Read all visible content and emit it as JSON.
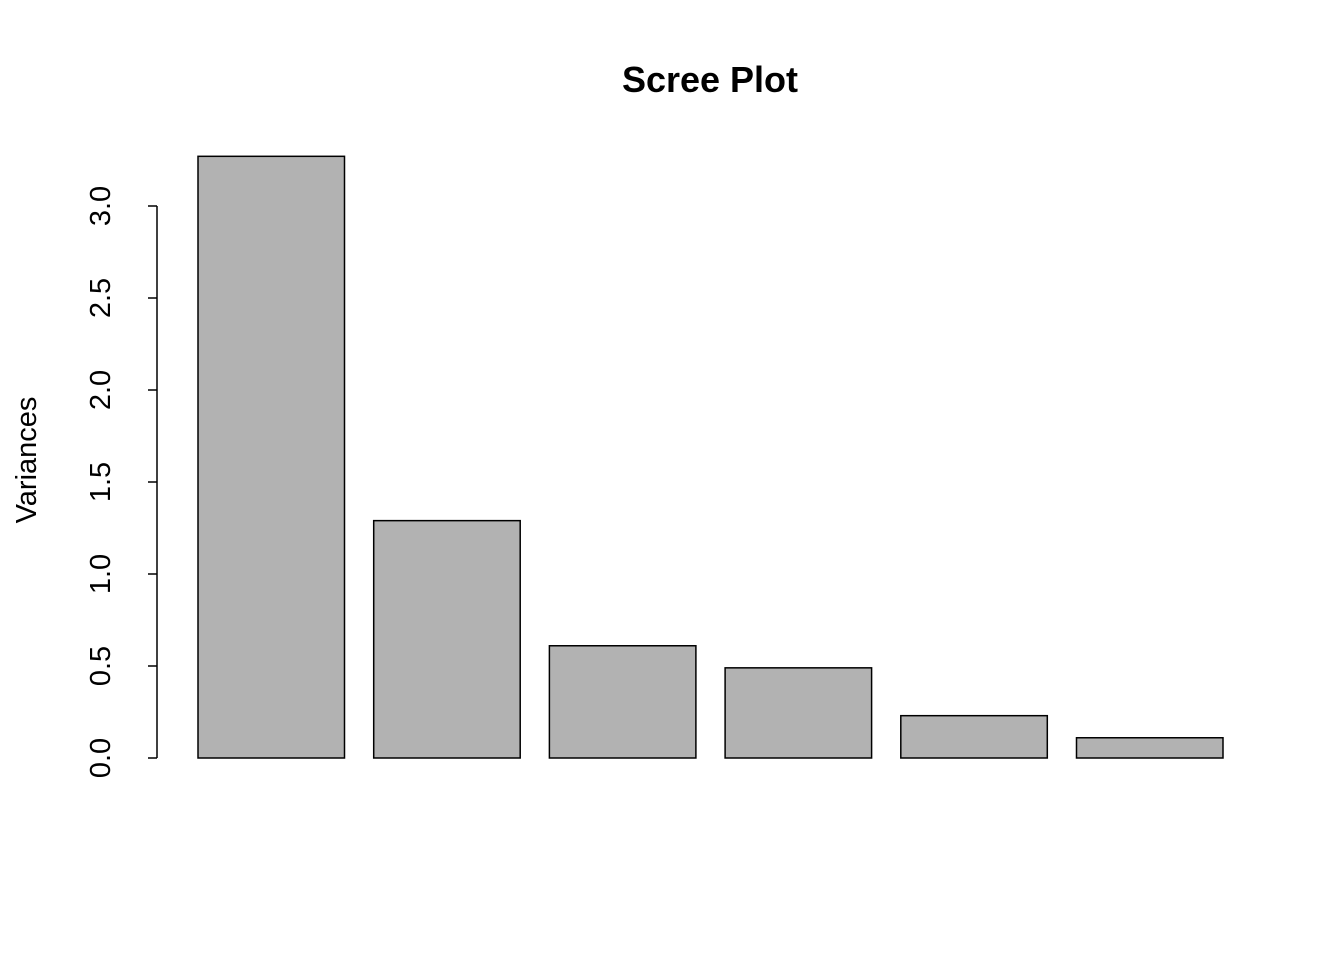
{
  "chart_data": {
    "type": "bar",
    "title": "Scree Plot",
    "y_label": "Variances",
    "categories": [
      null,
      null,
      null,
      null,
      null,
      null
    ],
    "values": [
      3.27,
      1.29,
      0.61,
      0.49,
      0.23,
      0.11
    ],
    "color": "#b2b2b2",
    "ylim": [
      0,
      3.27
    ],
    "yticks": [
      {
        "value": 0,
        "label": "0.0"
      },
      0.5,
      {
        "value": 1,
        "label": "1.0"
      },
      1.5,
      {
        "value": 2,
        "label": "2.0"
      },
      2.5,
      {
        "value": 3,
        "label": "3.0"
      }
    ],
    "grid": false
  }
}
